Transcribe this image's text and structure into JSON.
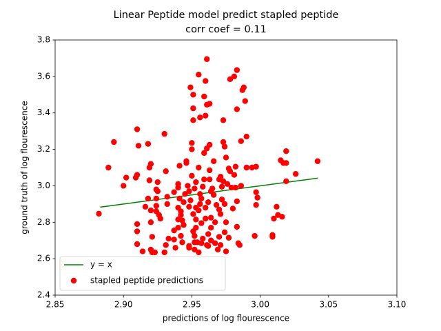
{
  "chart_data": {
    "type": "scatter",
    "title": "Linear Peptide model predict stapled peptide",
    "subtitle": "corr coef = 0.11",
    "x_label": "predictions of log flourescence",
    "y_label": "ground truth of log flourescence",
    "xlim": [
      2.85,
      3.1
    ],
    "ylim": [
      2.4,
      3.8
    ],
    "xticks": [
      2.85,
      {
        "value": 2.9,
        "label": "2.90"
      },
      2.95,
      {
        "value": 3.0,
        "label": "3.00"
      },
      3.05,
      {
        "value": 3.1,
        "label": "3.10"
      }
    ],
    "yticks": [
      2.4,
      2.6,
      2.8,
      {
        "value": 3.0,
        "label": "3.0"
      },
      3.2,
      3.4,
      3.6,
      3.8
    ],
    "legend": "lower left",
    "series": [
      {
        "name": "y = x",
        "type": "line",
        "color": "#008000",
        "x": [
          2.883,
          3.042
        ],
        "values": [
          2.883,
          3.042
        ]
      },
      {
        "name": "stapled peptide predictions",
        "type": "scatter",
        "color": "#ff0000",
        "x": [
          2.882,
          2.889,
          2.893,
          2.9,
          2.902,
          2.909,
          2.91,
          2.91,
          2.911,
          2.918,
          2.91,
          2.91,
          2.91,
          2.914,
          2.916,
          2.918,
          2.919,
          2.919,
          2.92,
          2.92,
          2.92,
          2.921,
          2.92,
          2.921,
          2.923,
          2.924,
          2.924,
          2.924,
          2.925,
          2.925,
          2.926,
          2.927,
          2.924,
          2.93,
          2.931,
          2.931,
          2.933,
          2.93,
          2.932,
          2.932,
          2.937,
          2.937,
          2.937,
          2.938,
          2.94,
          2.94,
          2.94,
          2.94,
          2.94,
          2.941,
          2.941,
          2.942,
          2.942,
          2.942,
          2.943,
          2.943,
          2.944,
          2.944,
          2.945,
          2.946,
          2.946,
          2.947,
          2.948,
          2.948,
          2.948,
          2.948,
          2.949,
          2.949,
          2.95,
          2.95,
          2.95,
          2.951,
          2.951,
          2.952,
          2.952,
          2.952,
          2.953,
          2.952,
          2.953,
          2.953,
          2.953,
          2.954,
          2.955,
          2.955,
          2.955,
          2.956,
          2.956,
          2.957,
          2.957,
          2.951,
          2.951,
          2.951,
          2.955,
          2.956,
          2.957,
          2.958,
          2.958,
          2.959,
          2.959,
          2.959,
          2.96,
          2.96,
          2.96,
          2.961,
          2.96,
          2.961,
          2.961,
          2.961,
          2.962,
          2.962,
          2.962,
          2.963,
          2.963,
          2.963,
          2.963,
          2.964,
          2.964,
          2.964,
          2.964,
          2.965,
          2.966,
          2.966,
          2.967,
          2.967,
          2.968,
          2.969,
          2.97,
          2.97,
          2.97,
          2.971,
          2.971,
          2.971,
          2.972,
          2.972,
          2.973,
          2.973,
          2.973,
          2.974,
          2.974,
          2.974,
          2.975,
          2.975,
          2.975,
          2.976,
          2.977,
          2.977,
          2.978,
          2.978,
          2.979,
          2.98,
          2.981,
          2.981,
          2.982,
          2.982,
          2.983,
          2.983,
          2.983,
          2.983,
          2.984,
          2.985,
          2.986,
          2.986,
          2.987,
          2.988,
          2.989,
          2.99,
          2.99,
          2.994,
          2.996,
          2.997,
          2.997,
          2.997,
          2.998,
          3.009,
          3.009,
          3.01,
          3.012,
          3.013,
          3.015,
          3.016,
          3.017,
          3.019,
          3.019,
          3.019,
          3.026,
          3.042
        ],
        "values": [
          2.847,
          3.1,
          3.24,
          3.0,
          3.045,
          3.045,
          3.31,
          3.06,
          3.22,
          3.23,
          2.79,
          2.75,
          2.68,
          2.64,
          2.885,
          2.93,
          3.03,
          3.1,
          3.12,
          2.8,
          2.865,
          2.72,
          2.65,
          2.635,
          2.635,
          2.86,
          2.89,
          2.93,
          2.97,
          3.02,
          2.84,
          2.82,
          2.98,
          3.285,
          3.08,
          2.675,
          2.71,
          2.635,
          2.9,
          2.94,
          2.965,
          2.755,
          2.705,
          2.66,
          3.01,
          2.99,
          2.88,
          2.815,
          2.77,
          3.11,
          2.93,
          2.725,
          2.86,
          2.84,
          2.81,
          2.69,
          2.785,
          2.91,
          2.955,
          3.125,
          3.135,
          3.0,
          2.97,
          2.885,
          2.67,
          2.66,
          3.54,
          2.92,
          3.2,
          3.235,
          3.055,
          2.845,
          2.75,
          2.725,
          2.69,
          2.65,
          3.02,
          2.985,
          2.88,
          2.815,
          2.77,
          2.69,
          2.635,
          3.1,
          2.865,
          2.955,
          2.9,
          2.795,
          2.93,
          3.5,
          3.425,
          3.36,
          3.61,
          3.375,
          2.685,
          2.995,
          2.71,
          3.49,
          3.18,
          3.035,
          2.82,
          3.385,
          3.575,
          3.695,
          2.88,
          3.205,
          3.445,
          2.675,
          2.67,
          2.91,
          2.735,
          3.45,
          3.085,
          3.225,
          3.035,
          2.97,
          2.77,
          2.7,
          2.825,
          2.985,
          3.135,
          2.95,
          2.8,
          2.685,
          2.895,
          2.65,
          2.72,
          3.035,
          2.87,
          2.845,
          3.05,
          2.675,
          2.995,
          2.925,
          3.36,
          3.24,
          3.025,
          3.215,
          2.745,
          2.9,
          2.8,
          2.64,
          3.155,
          3.01,
          3.095,
          2.715,
          3.585,
          3.08,
          2.99,
          2.875,
          3.06,
          3.6,
          3.105,
          2.99,
          3.42,
          2.915,
          3.635,
          2.775,
          2.685,
          2.675,
          3.0,
          3.245,
          3.525,
          3.54,
          3.465,
          3.27,
          3.1,
          3.1,
          2.725,
          2.965,
          3.105,
          2.895,
          2.935,
          2.73,
          2.72,
          2.82,
          2.885,
          2.84,
          3.14,
          2.83,
          3.125,
          3.025,
          3.19,
          3.125,
          3.065,
          3.135
        ]
      }
    ]
  }
}
